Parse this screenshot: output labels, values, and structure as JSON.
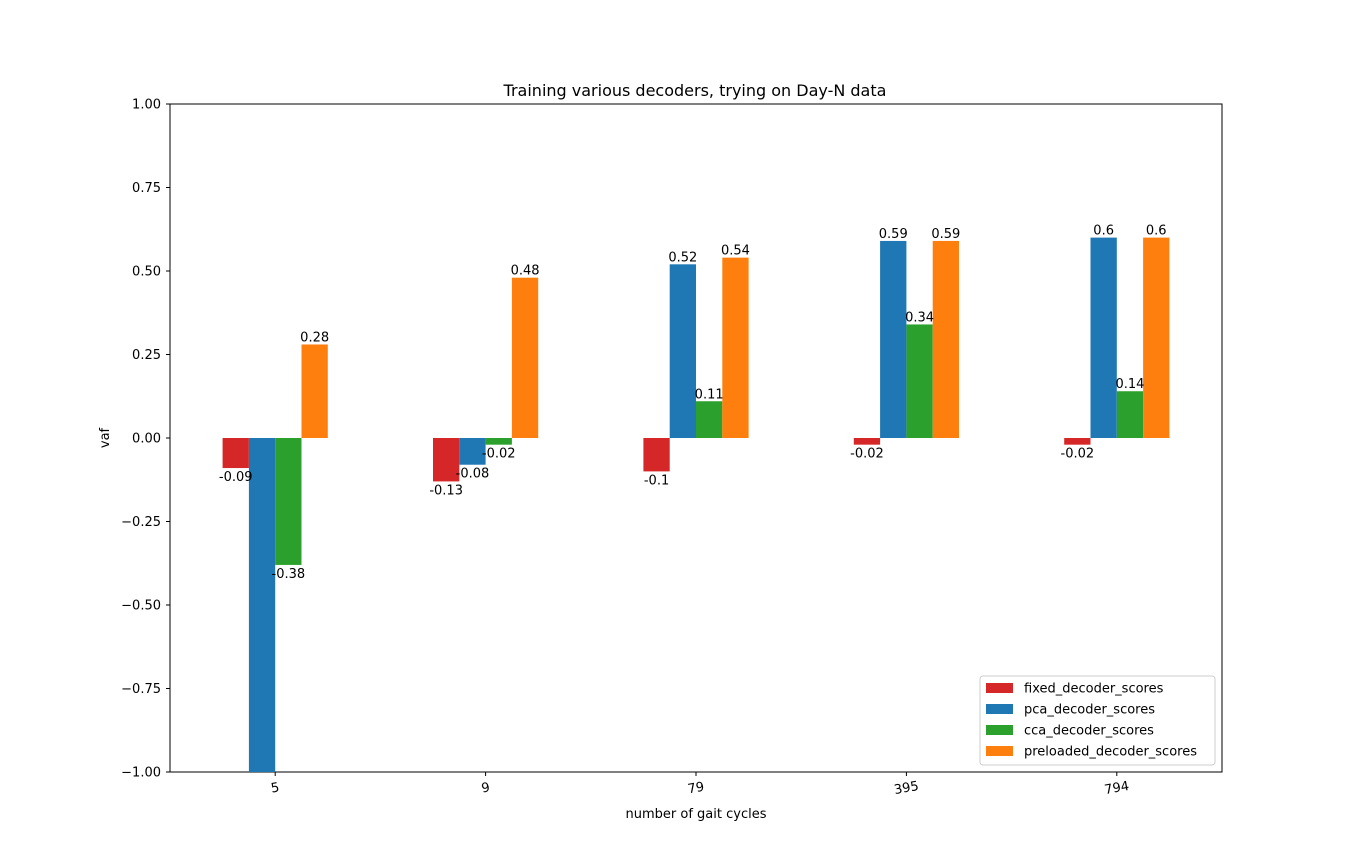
{
  "chart_data": {
    "type": "bar",
    "title": "Training various decoders, trying on Day-N data",
    "xlabel": "number of gait cycles",
    "ylabel": "vaf",
    "categories": [
      "5",
      "9",
      "79",
      "395",
      "794"
    ],
    "ylim": [
      -1.0,
      1.0
    ],
    "yticks": [
      "−1.00",
      "−0.75",
      "−0.50",
      "−0.25",
      "0.00",
      "0.25",
      "0.50",
      "0.75",
      "1.00"
    ],
    "ytick_values": [
      -1.0,
      -0.75,
      -0.5,
      -0.25,
      0.0,
      0.25,
      0.5,
      0.75,
      1.0
    ],
    "series": [
      {
        "name": "fixed_decoder_scores",
        "color": "#d62728",
        "values": [
          -0.09,
          -0.13,
          -0.1,
          -0.02,
          -0.02
        ],
        "labels": [
          "-0.09",
          "-0.13",
          "-0.1",
          "-0.02",
          "-0.02"
        ]
      },
      {
        "name": "pca_decoder_scores",
        "color": "#1f77b4",
        "values": [
          -1.0,
          -0.08,
          0.52,
          0.59,
          0.6
        ],
        "labels": [
          "",
          "-0.08",
          "0.52",
          "0.59",
          "0.6"
        ]
      },
      {
        "name": "cca_decoder_scores",
        "color": "#2ca02c",
        "values": [
          -0.38,
          -0.02,
          0.11,
          0.34,
          0.14
        ],
        "labels": [
          "-0.38",
          "-0.02",
          "0.11",
          "0.34",
          "0.14"
        ]
      },
      {
        "name": "preloaded_decoder_scores",
        "color": "#ff7f0e",
        "values": [
          0.28,
          0.48,
          0.54,
          0.59,
          0.6
        ],
        "labels": [
          "0.28",
          "0.48",
          "0.54",
          "0.59",
          "0.6"
        ]
      }
    ],
    "legend_position": "lower-right",
    "grid": false,
    "xtick_rotation_deg": -10
  }
}
